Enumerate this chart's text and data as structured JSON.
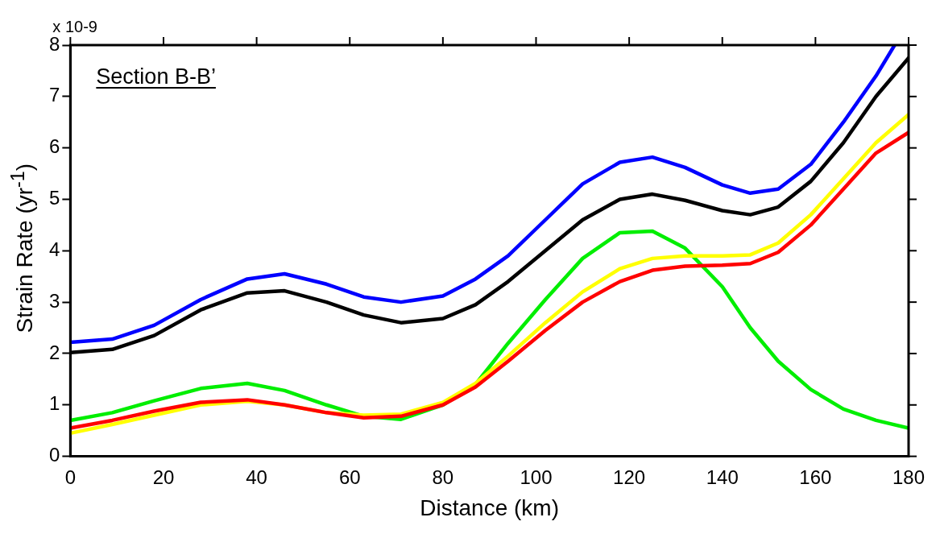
{
  "chart_data": {
    "type": "line",
    "xlabel": "Distance (km)",
    "ylabel": "Strain Rate (yr$^{-1}$)",
    "annotations": [
      "x 10-9",
      "Section B-B’"
    ],
    "x": [
      0,
      9,
      18,
      28,
      38,
      46,
      55,
      63,
      71,
      80,
      87,
      94,
      102,
      110,
      118,
      125,
      132,
      140,
      146,
      152,
      159,
      166,
      173,
      180
    ],
    "series": [
      {
        "color": "#0000ff",
        "x": [
          0,
          9,
          18,
          28,
          38,
          46,
          55,
          63,
          71,
          80,
          87,
          94,
          102,
          110,
          118,
          125,
          132,
          140,
          146,
          152,
          159,
          166,
          173,
          177
        ],
        "values": [
          2.22,
          2.28,
          2.55,
          3.05,
          3.45,
          3.55,
          3.35,
          3.1,
          3.0,
          3.12,
          3.45,
          3.9,
          4.6,
          5.3,
          5.72,
          5.82,
          5.62,
          5.28,
          5.12,
          5.2,
          5.68,
          6.5,
          7.4,
          8.0
        ]
      },
      {
        "color": "#000000",
        "values": [
          2.02,
          2.08,
          2.35,
          2.85,
          3.18,
          3.22,
          3.0,
          2.75,
          2.6,
          2.68,
          2.95,
          3.4,
          4.0,
          4.6,
          5.0,
          5.1,
          4.98,
          4.78,
          4.7,
          4.85,
          5.35,
          6.1,
          7.0,
          7.75
        ]
      },
      {
        "color": "#00ee00",
        "values": [
          0.7,
          0.85,
          1.08,
          1.32,
          1.42,
          1.28,
          1.0,
          0.78,
          0.72,
          1.0,
          1.4,
          2.2,
          3.05,
          3.85,
          4.35,
          4.38,
          4.05,
          3.3,
          2.5,
          1.85,
          1.3,
          0.92,
          0.7,
          0.55
        ]
      },
      {
        "color": "#ffff00",
        "values": [
          0.45,
          0.62,
          0.8,
          1.0,
          1.07,
          1.0,
          0.85,
          0.8,
          0.82,
          1.05,
          1.42,
          1.95,
          2.6,
          3.2,
          3.65,
          3.85,
          3.9,
          3.9,
          3.92,
          4.15,
          4.7,
          5.4,
          6.1,
          6.65
        ]
      },
      {
        "color": "#ff0000",
        "values": [
          0.55,
          0.7,
          0.88,
          1.05,
          1.1,
          1.0,
          0.85,
          0.75,
          0.78,
          1.0,
          1.35,
          1.85,
          2.45,
          3.0,
          3.4,
          3.62,
          3.7,
          3.72,
          3.75,
          3.97,
          4.5,
          5.2,
          5.9,
          6.3
        ]
      }
    ],
    "xlim": [
      0,
      180
    ],
    "xticks": [
      0,
      20,
      40,
      60,
      80,
      100,
      120,
      140,
      160,
      180
    ],
    "ylim": [
      0,
      8
    ],
    "yticks": [
      0,
      1,
      2,
      3,
      4,
      5,
      6,
      7,
      8
    ],
    "grid": false,
    "legend": false,
    "marker": "none",
    "line_style": "solid"
  }
}
